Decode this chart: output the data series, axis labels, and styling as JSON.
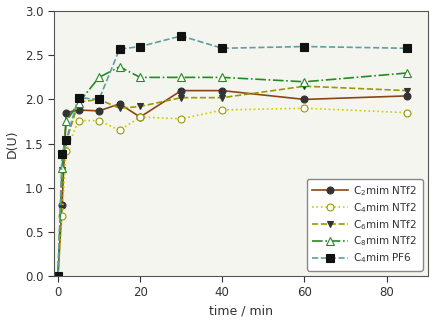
{
  "series": [
    {
      "label": "C$_2$mim NTf2",
      "color": "#8B4513",
      "linestyle": "-",
      "marker": "o",
      "markerfacecolor": "#333333",
      "markeredgecolor": "#333333",
      "markersize": 5,
      "x": [
        0,
        1,
        2,
        5,
        10,
        15,
        20,
        30,
        40,
        60,
        85
      ],
      "y": [
        0.0,
        0.8,
        1.85,
        1.88,
        1.87,
        1.95,
        1.8,
        2.1,
        2.1,
        2.0,
        2.04
      ]
    },
    {
      "label": "C$_4$mim NTf2",
      "color": "#CCCC00",
      "linestyle": ":",
      "marker": "o",
      "markerfacecolor": "white",
      "markeredgecolor": "#999900",
      "markersize": 5,
      "x": [
        0,
        1,
        2,
        5,
        10,
        15,
        20,
        30,
        40,
        60,
        85
      ],
      "y": [
        0.0,
        0.68,
        1.42,
        1.76,
        1.76,
        1.65,
        1.8,
        1.78,
        1.88,
        1.9,
        1.85
      ]
    },
    {
      "label": "C$_6$mim NTf2",
      "color": "#999900",
      "linestyle": "--",
      "marker": "v",
      "markerfacecolor": "#333333",
      "markeredgecolor": "#333333",
      "markersize": 5,
      "x": [
        0,
        1,
        2,
        5,
        10,
        15,
        20,
        30,
        40,
        60,
        85
      ],
      "y": [
        0.0,
        1.2,
        1.52,
        1.97,
        2.0,
        1.9,
        1.92,
        2.02,
        2.02,
        2.15,
        2.1
      ]
    },
    {
      "label": "C$_8$mim NTf2",
      "color": "#228B22",
      "linestyle": "-.",
      "marker": "^",
      "markerfacecolor": "white",
      "markeredgecolor": "#228B22",
      "markersize": 6,
      "x": [
        0,
        1,
        2,
        5,
        10,
        15,
        20,
        30,
        40,
        60,
        85
      ],
      "y": [
        0.0,
        1.22,
        1.75,
        1.96,
        2.25,
        2.37,
        2.25,
        2.25,
        2.25,
        2.2,
        2.3
      ]
    },
    {
      "label": "C$_4$mim PF6",
      "color": "#5F9EA0",
      "linestyle": "--",
      "marker": "s",
      "markerfacecolor": "#111111",
      "markeredgecolor": "#111111",
      "markersize": 6,
      "x": [
        0,
        1,
        2,
        5,
        10,
        15,
        20,
        30,
        40,
        60,
        85
      ],
      "y": [
        0.0,
        1.38,
        1.54,
        2.02,
        2.0,
        2.57,
        2.6,
        2.72,
        2.58,
        2.6,
        2.58
      ]
    }
  ],
  "xlabel": "time / min",
  "ylabel": "D(U)",
  "xlim": [
    -1,
    90
  ],
  "ylim": [
    0.0,
    3.0
  ],
  "xticks": [
    0,
    20,
    40,
    60,
    80
  ],
  "yticks": [
    0.0,
    0.5,
    1.0,
    1.5,
    2.0,
    2.5,
    3.0
  ],
  "legend_loc": "lower right",
  "figsize": [
    4.34,
    3.24
  ],
  "dpi": 100,
  "bg_color": "#f5f5f0"
}
